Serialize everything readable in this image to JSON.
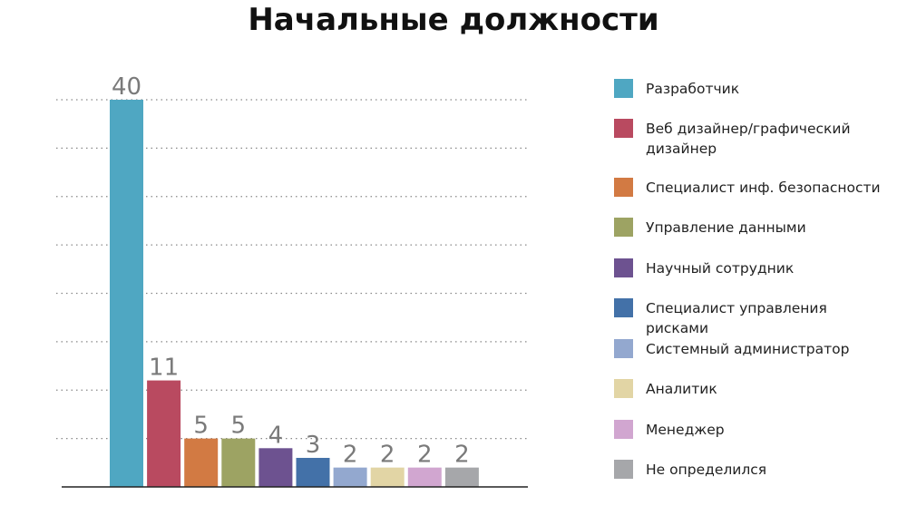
{
  "chart_data": {
    "type": "bar",
    "title": "Начальные должности",
    "categories": [
      "Разработчик",
      "Веб дизайнер/графический дизайнер",
      "Специалист инф. безопасности",
      "Управление данными",
      "Научный сотрудник",
      "Специалист управления рисками",
      "Системный администратор",
      "Аналитик",
      "Менеджер",
      "Не определился"
    ],
    "values": [
      40,
      11,
      5,
      5,
      4,
      3,
      2,
      2,
      2,
      2
    ],
    "colors": [
      "#4fa7c2",
      "#b94a60",
      "#d27a43",
      "#9da363",
      "#6d5290",
      "#4371a8",
      "#93a8cf",
      "#e2d5a5",
      "#d1a6d0",
      "#a6a7aa"
    ],
    "ylim": [
      0,
      40
    ],
    "grid": true,
    "grid_step": 5,
    "legend": "right",
    "xlabel": "",
    "ylabel": ""
  }
}
